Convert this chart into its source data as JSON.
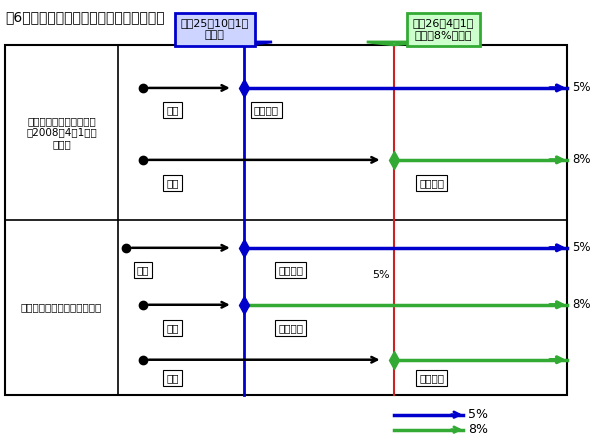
{
  "title": "図6　＜リース取引の経過措置の考え方＞",
  "title_fontsize": 10,
  "background_color": "#ffffff",
  "blue_color": "#0000cc",
  "green_color": "#33aa33",
  "black_color": "#000000",
  "red_color": "#cc2222",
  "box_blue_fill": "#ccd4ff",
  "box_green_fill": "#ccffcc",
  "box_blue_border": "#0000cc",
  "box_green_border": "#33aa33",
  "label1_line1": "ファイナンスリース契約",
  "label1_line2": "（2008年4月1日以",
  "label1_line3": "　降）",
  "label2": "オペレーティングリース契約",
  "balloon1_text": "平成25年10月1日\n指定日",
  "balloon2_text": "平成26年4月1日\n消費税8%引上げ",
  "label_keiyaku": "契約",
  "label_lease_open": "リース開",
  "pct5": "5%",
  "pct8": "8%",
  "fig_w": 5.93,
  "fig_h": 4.38,
  "dpi": 100
}
